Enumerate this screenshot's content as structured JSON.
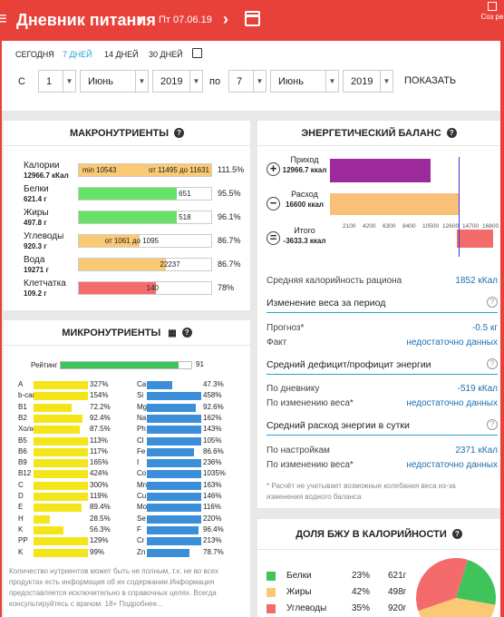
{
  "app": {
    "title": "Дневник питания",
    "date": "Пт 07.06.19",
    "create_label": "Соз ре"
  },
  "filters": {
    "periods": [
      "СЕГОДНЯ",
      "7 ДНЕЙ",
      "14 ДНЕЙ",
      "30 ДНЕЙ"
    ],
    "from_label": "С",
    "to_label": "по",
    "from_day": "1",
    "from_month": "Июнь",
    "from_year": "2019",
    "to_day": "7",
    "to_month": "Июнь",
    "to_year": "2019",
    "show_label": "ПОКАЗАТЬ"
  },
  "macros": {
    "title": "МАКРОНУТРИЕНТЫ",
    "rows": [
      {
        "name": "Калории",
        "amount": "12966.7 кКал",
        "bar_text": "min 10543",
        "bar_text2": "от 11495 до 11631",
        "fill": 100,
        "pct": "111.5%",
        "color": "#f9c974"
      },
      {
        "name": "Белки",
        "amount": "621.4 г",
        "bar_text": "",
        "bar_text2": "651",
        "fill": 74,
        "pct": "95.5%",
        "color": "#66e366"
      },
      {
        "name": "Жиры",
        "amount": "497.8 г",
        "bar_text": "",
        "bar_text2": "518",
        "fill": 74,
        "pct": "96.1%",
        "color": "#66e366"
      },
      {
        "name": "Углеводы",
        "amount": "920.3 г",
        "bar_text": "",
        "bar_text2": "от 1061 до 1095",
        "fill": 46,
        "pct": "86.7%",
        "color": "#f9c974"
      },
      {
        "name": "Вода",
        "amount": "19271 г",
        "bar_text": "",
        "bar_text2": "22237",
        "fill": 66,
        "pct": "86.7%",
        "color": "#f9c974"
      },
      {
        "name": "Клетчатка",
        "amount": "109.2 г",
        "bar_text": "",
        "bar_text2": "140",
        "fill": 58,
        "pct": "78%",
        "color": "#f46b6b"
      }
    ]
  },
  "micros": {
    "title": "МИКРОНУТРИЕНТЫ",
    "rating_label": "Рейтинг",
    "rating_value": "91",
    "rating_fill": 0.9,
    "left": [
      [
        "A",
        "327%",
        1
      ],
      [
        "b-car",
        "154%",
        1
      ],
      [
        "B1",
        "72.2%",
        0.7
      ],
      [
        "B2",
        "92.4%",
        0.9
      ],
      [
        "Холин",
        "87.5%",
        0.85
      ],
      [
        "B5",
        "113%",
        1
      ],
      [
        "B6",
        "117%",
        1
      ],
      [
        "B9",
        "165%",
        1
      ],
      [
        "B12",
        "424%",
        1
      ],
      [
        "C",
        "300%",
        1
      ],
      [
        "D",
        "119%",
        1
      ],
      [
        "E",
        "89.4%",
        0.88
      ],
      [
        "H",
        "28.5%",
        0.3
      ],
      [
        "K",
        "56.3%",
        0.55
      ],
      [
        "PP",
        "129%",
        1
      ],
      [
        "K",
        "99%",
        1
      ]
    ],
    "right": [
      [
        "Ca",
        "47.3%",
        0.47
      ],
      [
        "Si",
        "458%",
        1
      ],
      [
        "Mg",
        "92.6%",
        0.9
      ],
      [
        "Na",
        "162%",
        1
      ],
      [
        "Ph",
        "143%",
        1
      ],
      [
        "Cl",
        "105%",
        1
      ],
      [
        "Fe",
        "86.6%",
        0.86
      ],
      [
        "I",
        "236%",
        1
      ],
      [
        "Co",
        "1035%",
        1
      ],
      [
        "Mn",
        "163%",
        1
      ],
      [
        "Cu",
        "146%",
        1
      ],
      [
        "Mo",
        "116%",
        1
      ],
      [
        "Se",
        "220%",
        1
      ],
      [
        "F",
        "96.4%",
        0.95
      ],
      [
        "Cr",
        "213%",
        1
      ],
      [
        "Zn",
        "78.7%",
        0.78
      ]
    ],
    "note": "Количество нутриентов может быть не полным, т.к. не во всех продуктах есть информация об их содержании.Информация предоставляется исключительно в справочных целях. Всегда консультируйтесь с врачом. 18+ Подробнее..."
  },
  "balance": {
    "title": "ЭНЕРГЕТИЧЕСКИЙ БАЛАНС",
    "income_label": "Приход",
    "income_value": "12966.7 ккал",
    "expense_label": "Расход",
    "expense_value": "16600 ккал",
    "total_label": "Итого",
    "total_value": "-3633.3 ккал",
    "ticks": [
      "2100",
      "4200",
      "6300",
      "8400",
      "10500",
      "12600",
      "14700",
      "16800"
    ],
    "income_frac": 0.78,
    "expense_frac": 1.0,
    "total_frac": 0.22
  },
  "stats": {
    "avg_cal_label": "Средняя калорийность рациона",
    "avg_cal_value": "1852 кКал",
    "weight_head": "Изменение веса за период",
    "forecast_label": "Прогноз*",
    "forecast_value": "-0.5 кг",
    "fact_label": "Факт",
    "fact_value": "недостаточно данных",
    "deficit_head": "Средний дефицит/профицит энергии",
    "by_diary_label": "По дневнику",
    "by_diary_value": "-519 кКал",
    "by_weight_label": "По изменению веса*",
    "by_weight_value": "недостаточно данных",
    "expense_head": "Средний расход энергии в сутки",
    "settings_label": "По настройкам",
    "settings_value": "2371 кКал",
    "by_weight2_label": "По изменению веса*",
    "by_weight2_value": "недостаточно данных",
    "footnote": "* Расчёт не учитывает возможные колебания веса из-за изменения водного баланса"
  },
  "bju": {
    "title": "ДОЛЯ БЖУ В КАЛОРИЙНОСТИ",
    "rows": [
      {
        "name": "Белки",
        "pct": "23%",
        "g": "621г",
        "color": "#3ec45a",
        "frac": 0.23
      },
      {
        "name": "Жиры",
        "pct": "42%",
        "g": "498г",
        "color": "#f9c974",
        "frac": 0.42
      },
      {
        "name": "Углеводы",
        "pct": "35%",
        "g": "920г",
        "color": "#f46b6b",
        "frac": 0.35
      }
    ]
  }
}
